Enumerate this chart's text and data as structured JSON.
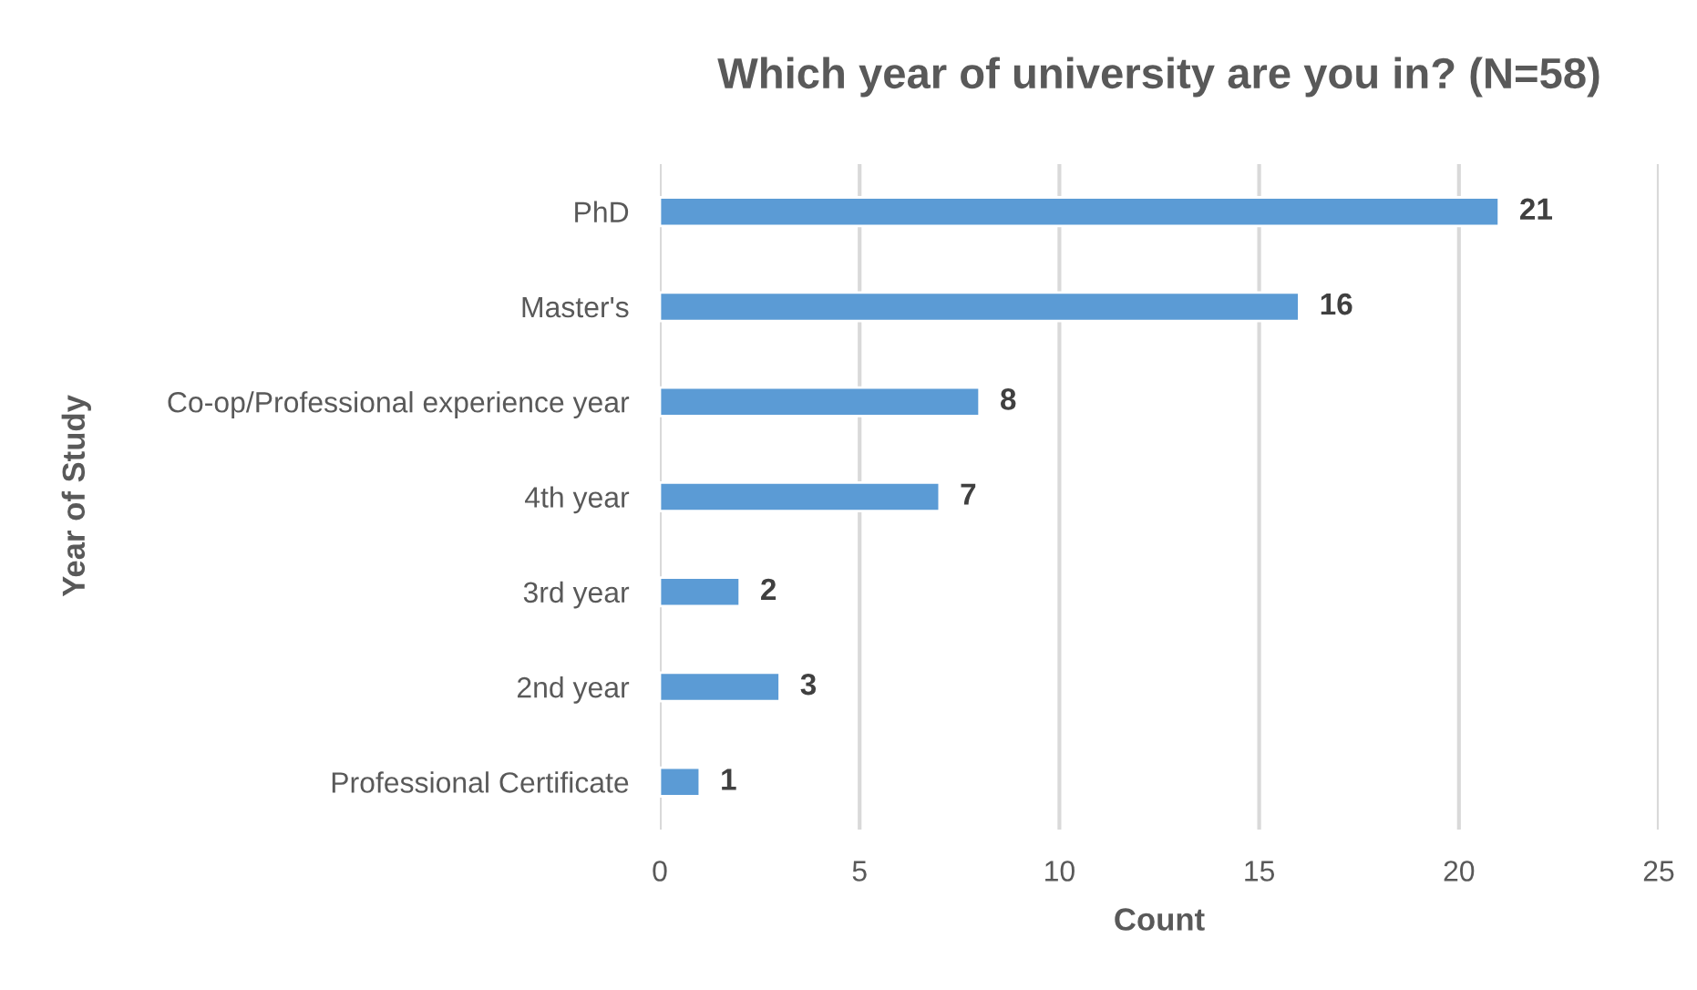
{
  "chart_data": {
    "type": "bar",
    "orientation": "horizontal",
    "title": "Which year of university are you in? (N=58)",
    "xlabel": "Count",
    "ylabel": "Year of Study",
    "categories": [
      "PhD",
      "Master's",
      "Co-op/Professional experience year",
      "4th year",
      "3rd year",
      "2nd year",
      "Professional Certificate"
    ],
    "values": [
      21,
      16,
      8,
      7,
      2,
      3,
      1
    ],
    "color": "#5b9bd5",
    "xlim": [
      0,
      25
    ],
    "xticks": [
      0,
      5,
      10,
      15,
      20,
      25
    ],
    "grid": "x",
    "data_labels": true
  }
}
